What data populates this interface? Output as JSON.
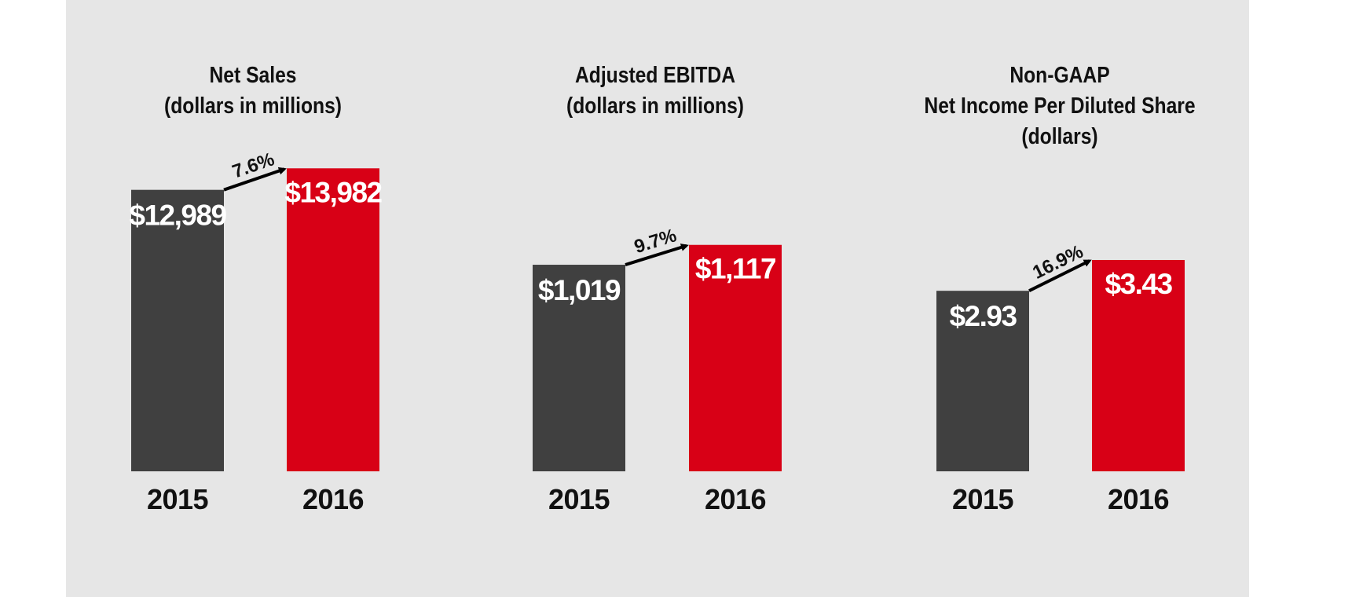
{
  "colors": {
    "background": "#e6e6e6",
    "bar_2015": "#404040",
    "bar_2016": "#d80016",
    "label_text": "#ffffff",
    "axis_text": "#111111"
  },
  "chart_data": [
    {
      "type": "bar",
      "title_lines": [
        "Net Sales",
        "(dollars in millions)"
      ],
      "categories": [
        "2015",
        "2016"
      ],
      "values": [
        12989,
        13982
      ],
      "value_labels": [
        "$12,989",
        "$13,982"
      ],
      "growth_label": "7.6%",
      "ylim": [
        0,
        14500
      ]
    },
    {
      "type": "bar",
      "title_lines": [
        "Adjusted EBITDA",
        "(dollars in millions)"
      ],
      "categories": [
        "2015",
        "2016"
      ],
      "values": [
        1019,
        1117
      ],
      "value_labels": [
        "$1,019",
        "$1,117"
      ],
      "growth_label": "9.7%",
      "ylim": [
        0,
        1550
      ]
    },
    {
      "type": "bar",
      "title_lines": [
        "Non-GAAP",
        "Net Income Per Diluted Share",
        "(dollars)"
      ],
      "categories": [
        "2015",
        "2016"
      ],
      "values": [
        2.93,
        3.43
      ],
      "value_labels": [
        "$2.93",
        "$3.43"
      ],
      "growth_label": "16.9%",
      "ylim": [
        0,
        5.1
      ]
    }
  ]
}
